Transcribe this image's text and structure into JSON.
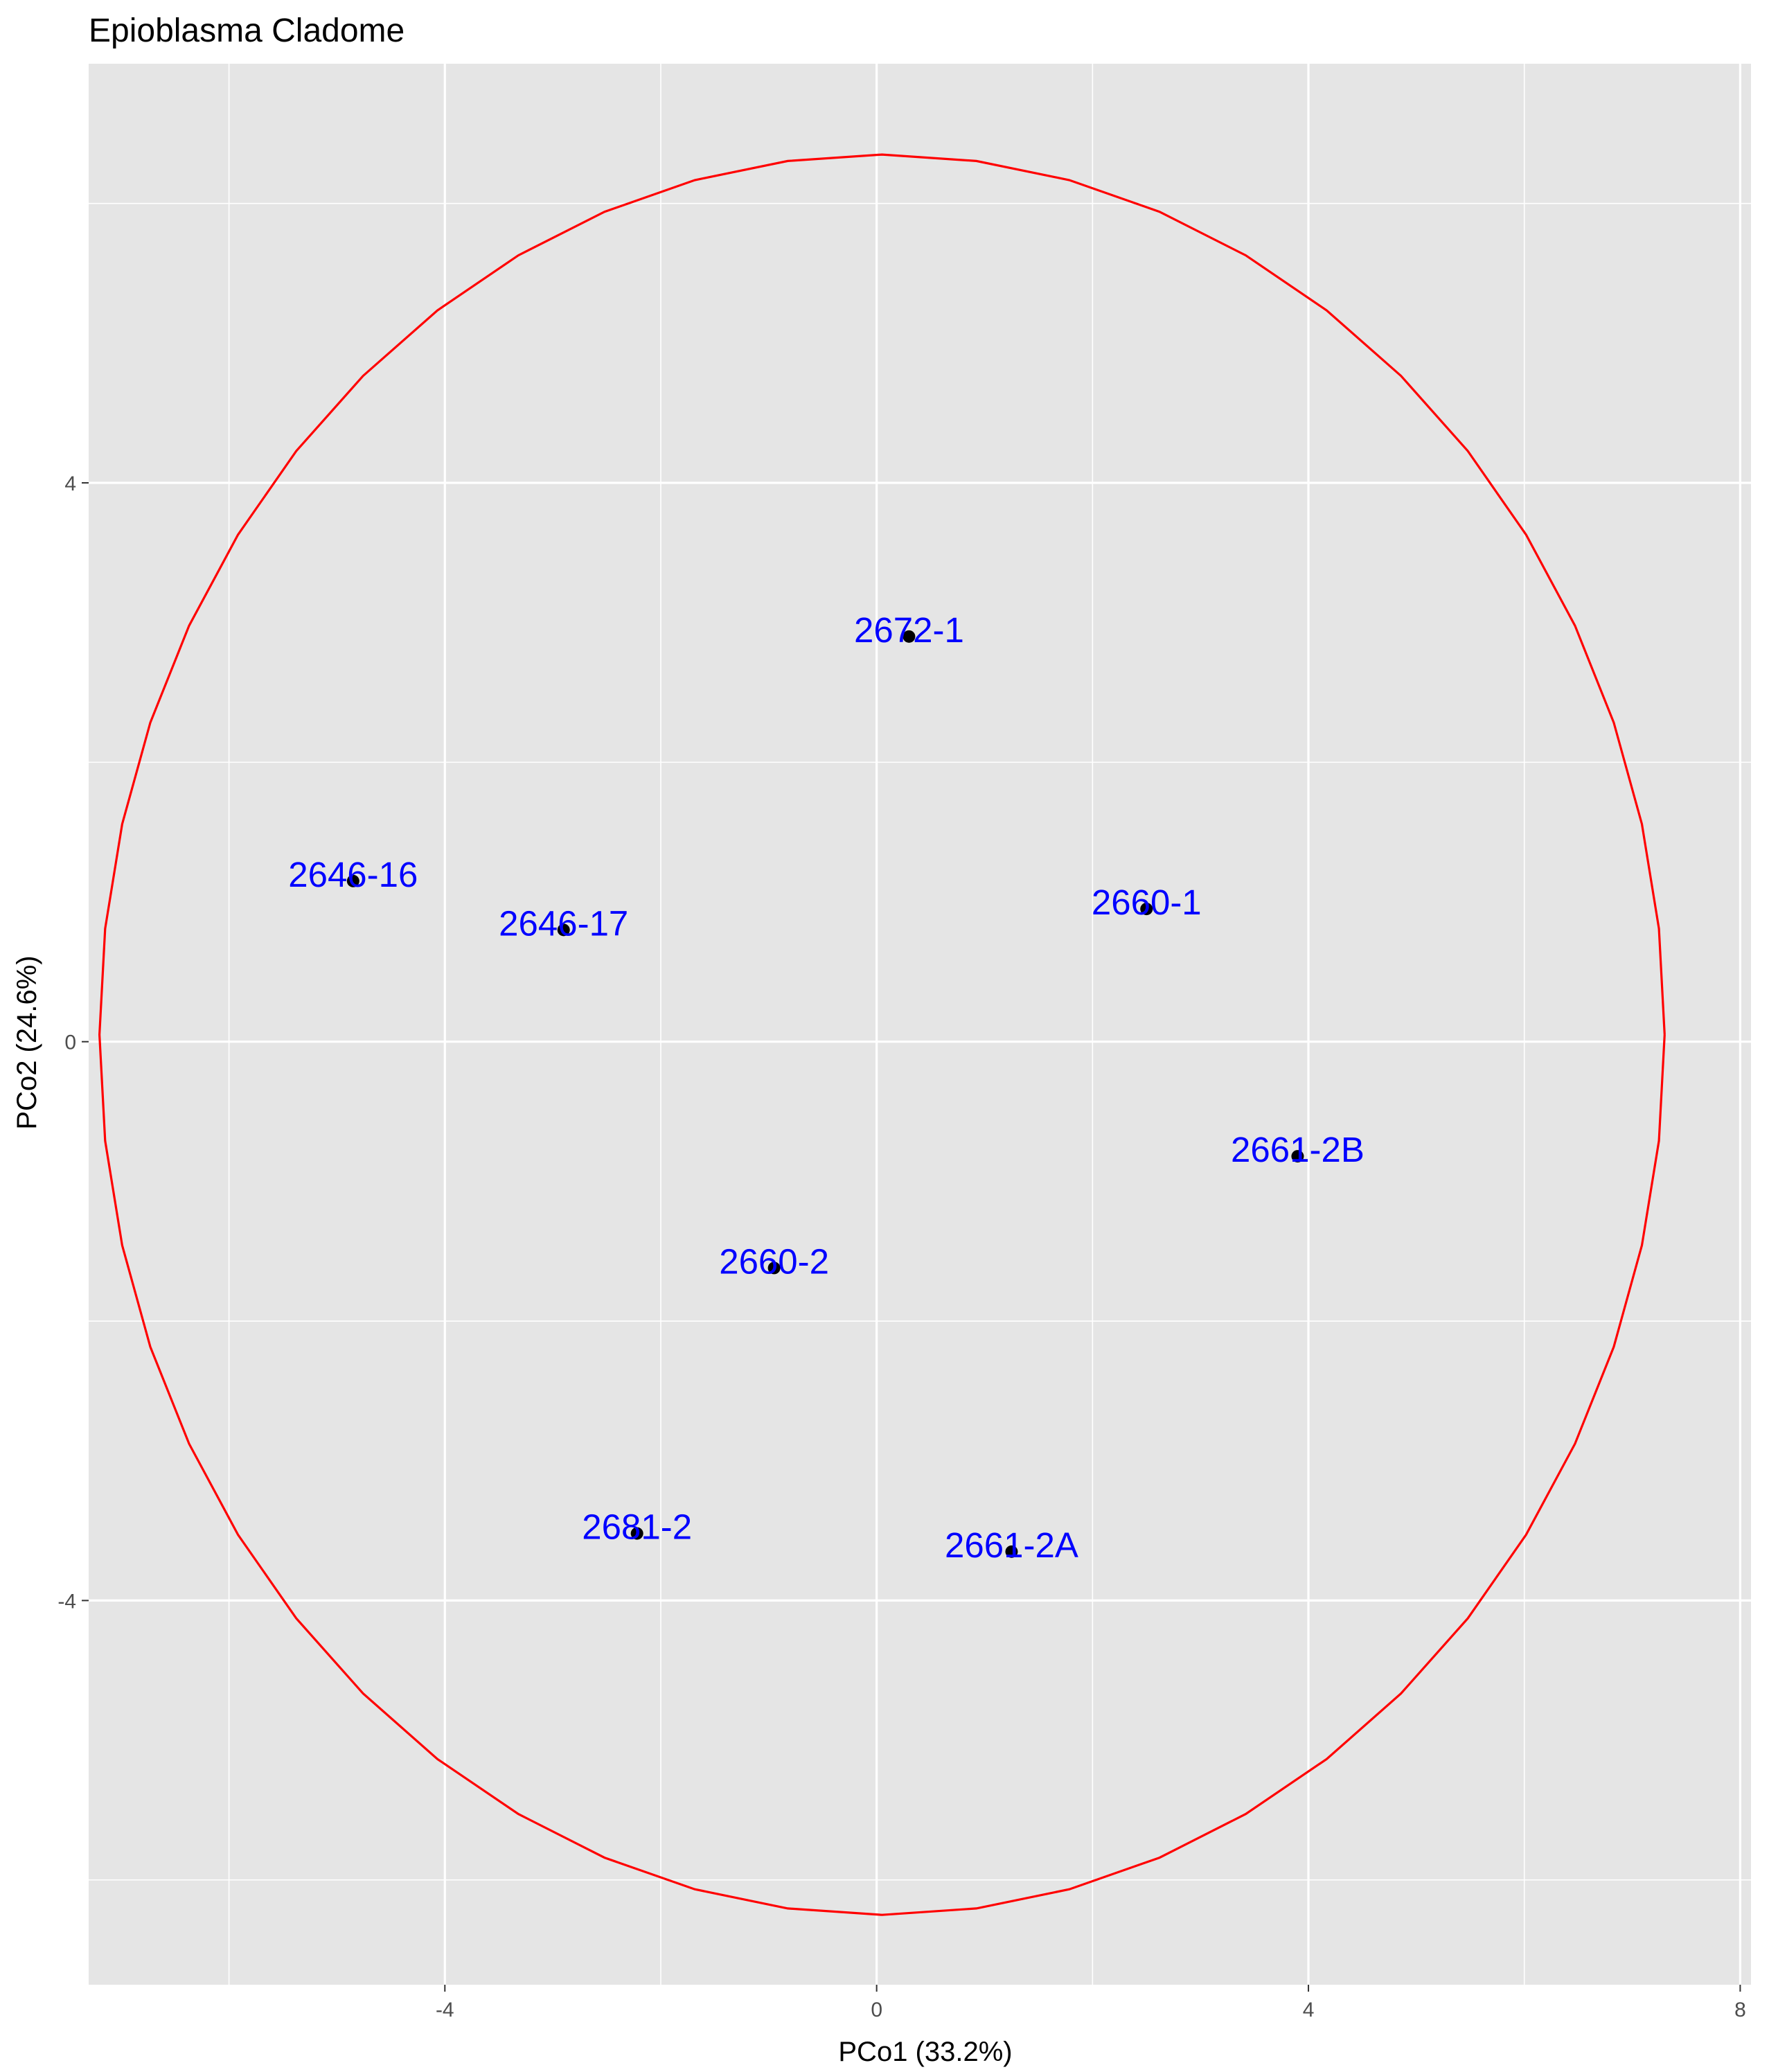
{
  "chart_data": {
    "type": "scatter",
    "title": "Epioblasma Cladome",
    "xlabel": "PCo1 (33.2%)",
    "ylabel": "PCo2 (24.6%)",
    "xlim": [
      -7.3,
      8.1
    ],
    "ylim": [
      -6.75,
      7.0
    ],
    "x_ticks": [
      -4,
      0,
      4,
      8
    ],
    "y_ticks": [
      -4,
      0,
      4
    ],
    "grid": true,
    "panel_background": "#e5e5e5",
    "grid_color": "#ffffff",
    "label_color": "#0000ff",
    "point_color": "#000000",
    "ellipse_color": "#ff0000",
    "points": [
      {
        "label": "2672-1",
        "x": 0.3,
        "y": 2.9
      },
      {
        "label": "2646-16",
        "x": -4.85,
        "y": 1.15
      },
      {
        "label": "2646-17",
        "x": -2.9,
        "y": 0.8
      },
      {
        "label": "2660-1",
        "x": 2.5,
        "y": 0.95
      },
      {
        "label": "2661-2B",
        "x": 3.9,
        "y": -0.82
      },
      {
        "label": "2660-2",
        "x": -0.95,
        "y": -1.62
      },
      {
        "label": "2681-2",
        "x": -2.22,
        "y": -3.52
      },
      {
        "label": "2661-2A",
        "x": 1.25,
        "y": -3.65
      }
    ],
    "ellipse": {
      "center": [
        0.05,
        0.05
      ],
      "radii": [
        7.25,
        6.3
      ]
    }
  }
}
